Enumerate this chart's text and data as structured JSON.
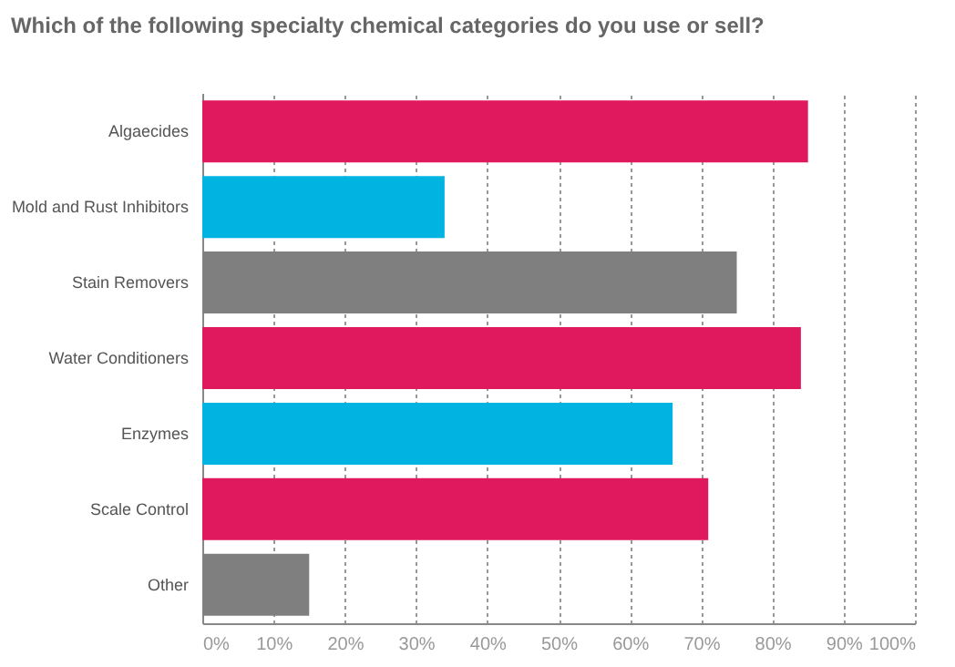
{
  "chart_data": {
    "type": "bar",
    "orientation": "horizontal",
    "title": "Which of the following specialty chemical categories do you use or sell?",
    "categories": [
      "Algaecides",
      "Mold and Rust Inhibitors",
      "Stain Removers",
      "Water Conditioners",
      "Enzymes",
      "Scale Control",
      "Other"
    ],
    "values": [
      85,
      34,
      75,
      84,
      66,
      71,
      15
    ],
    "colors": [
      "#e0195f",
      "#00b3e0",
      "#7f7f80",
      "#e0195f",
      "#00b3e0",
      "#e0195f",
      "#7f7f80"
    ],
    "xlim": [
      0,
      100
    ],
    "xticks": [
      {
        "value": 0,
        "label": "0%"
      },
      {
        "value": 10,
        "label": "10%"
      },
      {
        "value": 20,
        "label": "20%"
      },
      {
        "value": 30,
        "label": "30%"
      },
      {
        "value": 40,
        "label": "40%"
      },
      {
        "value": 50,
        "label": "50%"
      },
      {
        "value": 60,
        "label": "60%"
      },
      {
        "value": 70,
        "label": "70%"
      },
      {
        "value": 80,
        "label": "80%"
      },
      {
        "value": 90,
        "label": "90%"
      },
      {
        "value": 100,
        "label": "100%"
      }
    ],
    "grid": "x"
  }
}
